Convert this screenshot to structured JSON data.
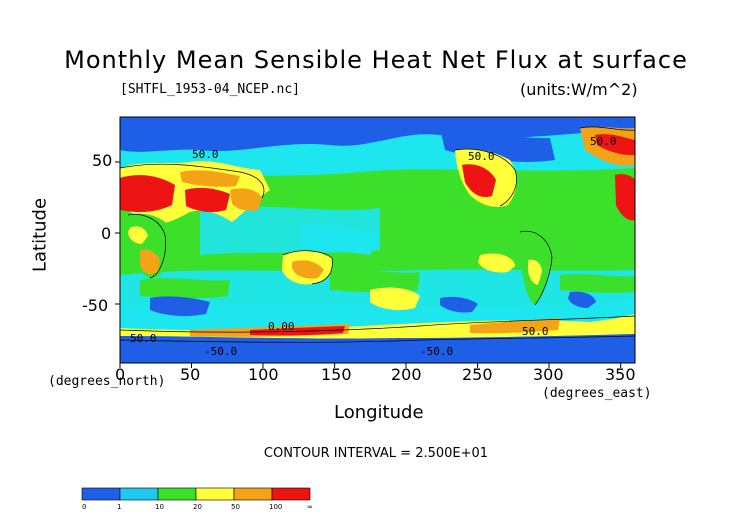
{
  "title": "Monthly Mean Sensible Heat Net Flux at surface",
  "file_label": "[SHTFL_1953-04_NCEP.nc]",
  "units_label": "(units:W/m^2)",
  "y_axis": {
    "label": "Latitude",
    "sublabel": "(degrees_north)",
    "ticks": [
      "50",
      "0",
      "-50"
    ]
  },
  "x_axis": {
    "label": "Longitude",
    "sublabel": "(degrees_east)",
    "ticks": [
      "0",
      "50",
      "100",
      "150",
      "200",
      "250",
      "300",
      "350"
    ]
  },
  "contour_interval": "CONTOUR INTERVAL = 2.500E+01",
  "contour_labels": [
    "50.0",
    "50.0",
    "50.0",
    "0.00",
    "50.0",
    "-50.0",
    "50.0",
    "-50.0"
  ],
  "legend": {
    "colors": [
      "#1f5fe8",
      "#1ec8f0",
      "#3ce02a",
      "#ffff3a",
      "#f5a316",
      "#ee1414"
    ],
    "tick_labels": [
      "0",
      "1",
      "10",
      "20",
      "50",
      "100",
      "∞"
    ]
  },
  "palette": {
    "ocean_base": "#1ee6ee",
    "ice": "#1f5fe8",
    "tropics": "#3ce02a",
    "warm": "#ffff3a",
    "hot": "#f5a316",
    "hottest": "#ee1414"
  }
}
